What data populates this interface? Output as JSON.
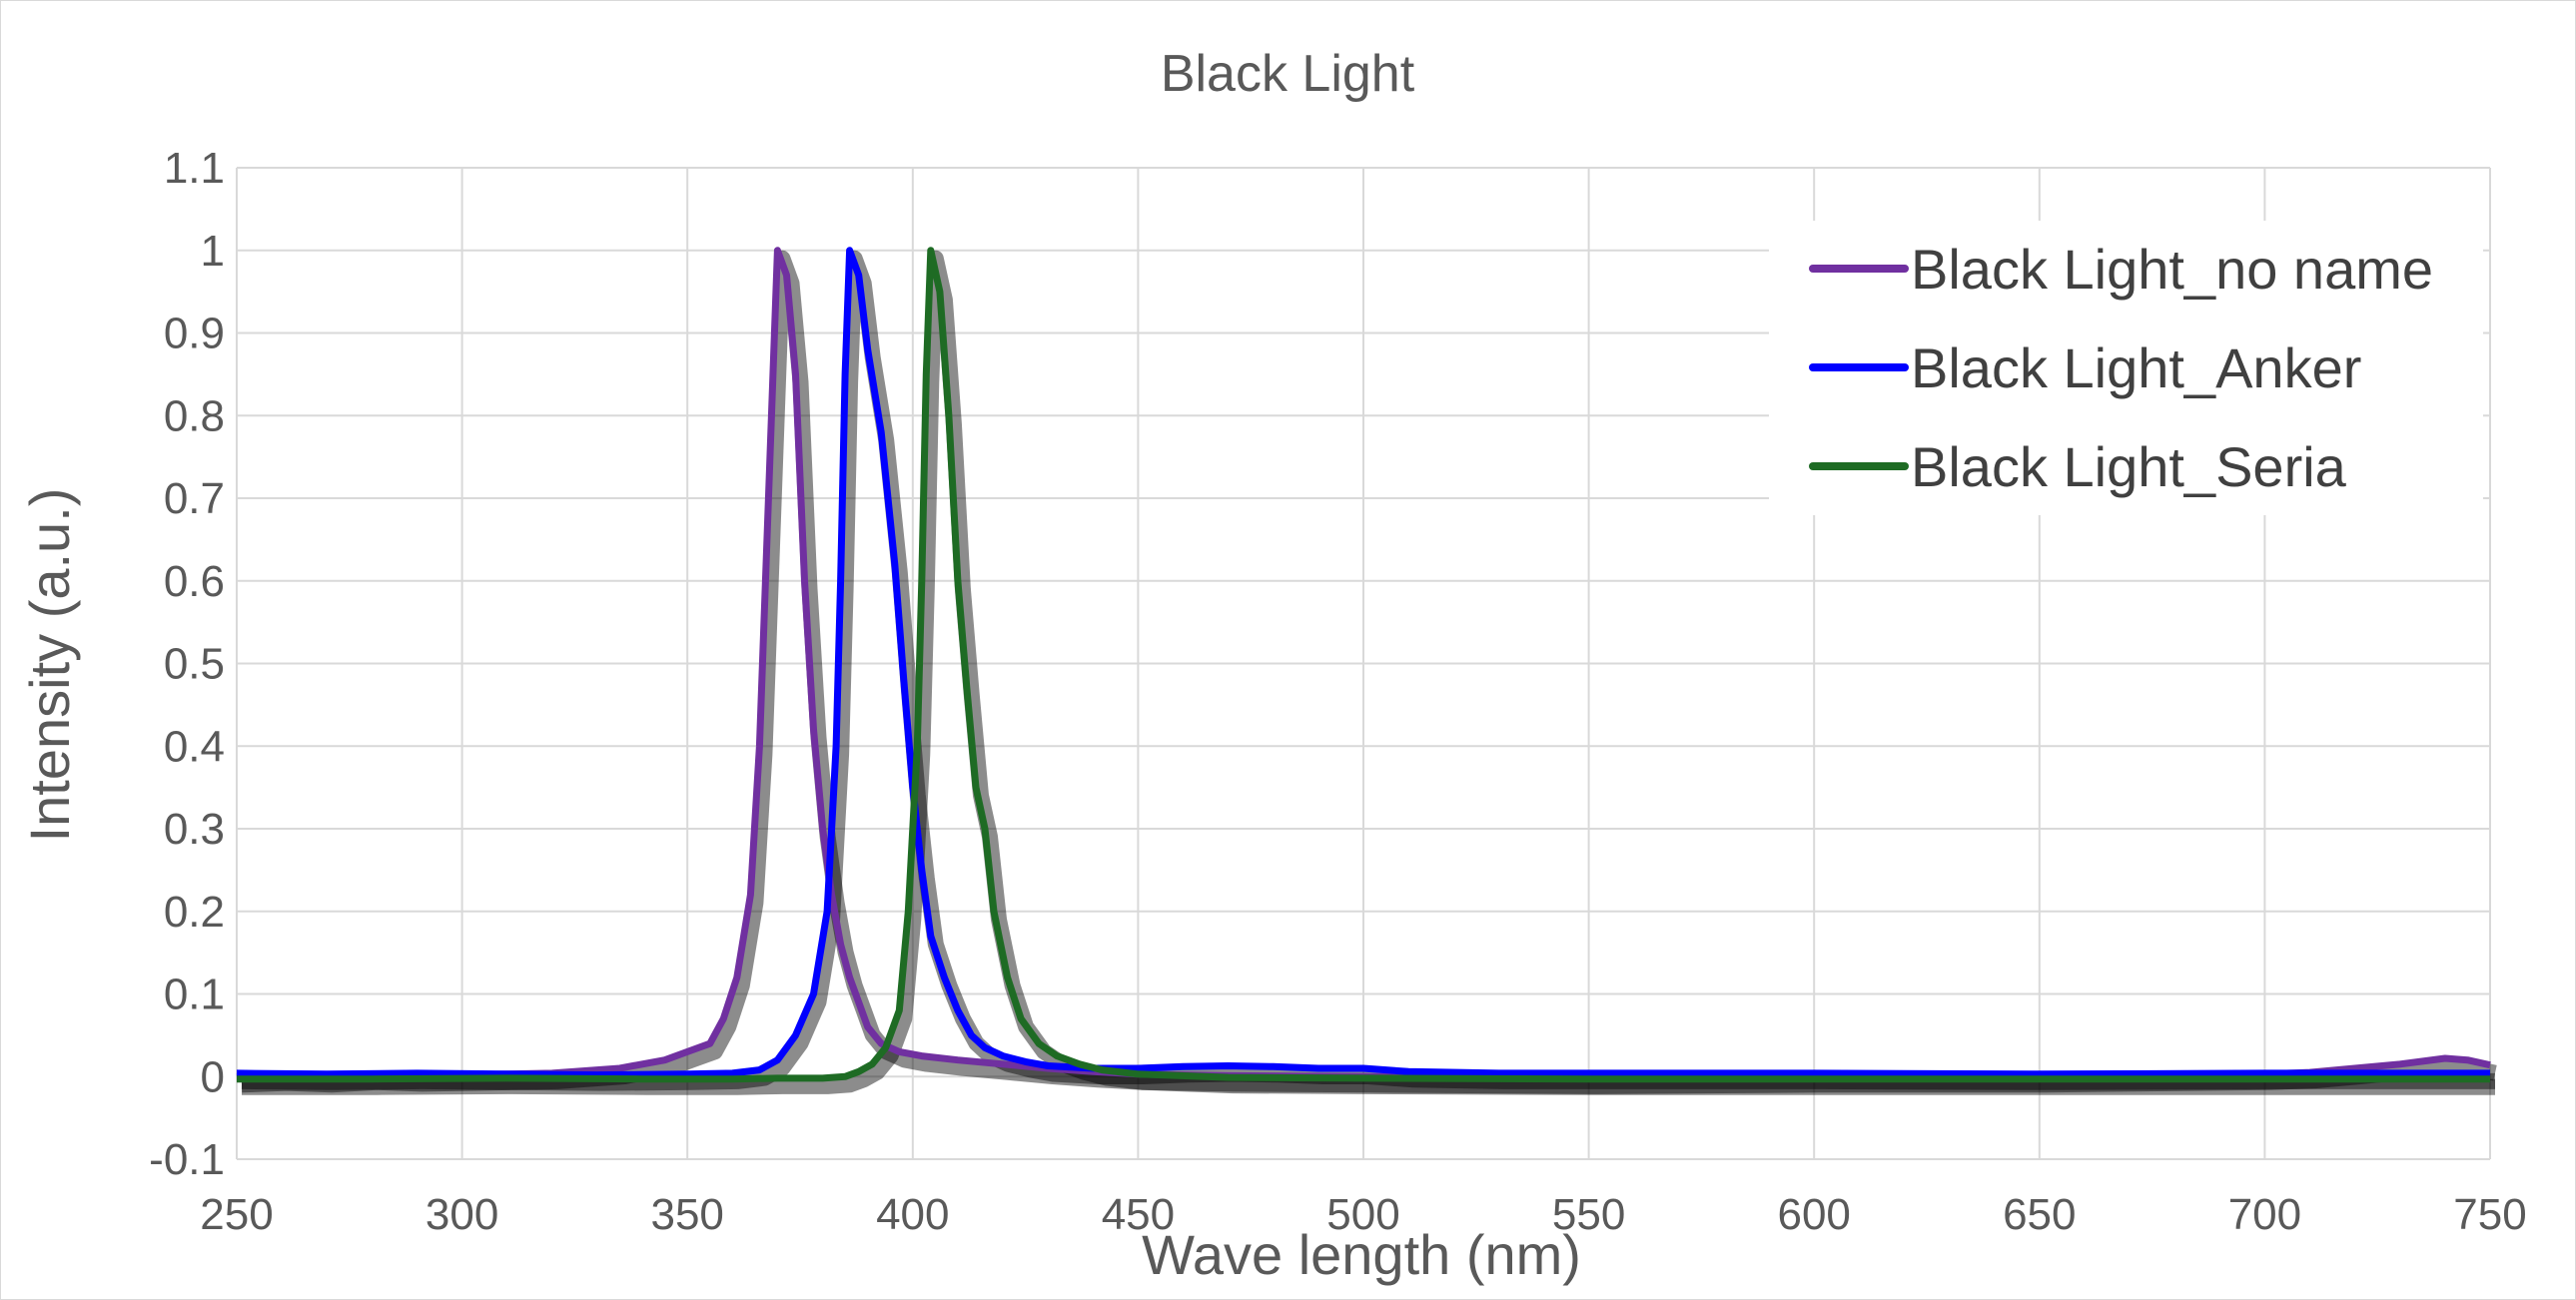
{
  "chart_data": {
    "type": "line",
    "title": "Black Light",
    "xlabel": "Wave length (nm)",
    "ylabel": "Intensity (a.u.)",
    "xlim": [
      250,
      750
    ],
    "ylim": [
      -0.1,
      1.1
    ],
    "x_ticks": [
      "250",
      "300",
      "350",
      "400",
      "450",
      "500",
      "550",
      "600",
      "650",
      "700",
      "750"
    ],
    "y_ticks": [
      "-0.1",
      "0",
      "0.1",
      "0.2",
      "0.3",
      "0.4",
      "0.5",
      "0.6",
      "0.7",
      "0.8",
      "0.9",
      "1",
      "1.1"
    ],
    "grid": true,
    "legend_position": "top-right",
    "series": [
      {
        "name": "Black Light_no name",
        "color": "#7030a0",
        "points": [
          [
            250,
            0.0
          ],
          [
            260,
            0.002
          ],
          [
            270,
            0.0
          ],
          [
            280,
            0.003
          ],
          [
            290,
            0.001
          ],
          [
            300,
            0.002
          ],
          [
            310,
            0.003
          ],
          [
            320,
            0.004
          ],
          [
            330,
            0.008
          ],
          [
            335,
            0.01
          ],
          [
            340,
            0.015
          ],
          [
            345,
            0.02
          ],
          [
            350,
            0.03
          ],
          [
            355,
            0.04
          ],
          [
            358,
            0.07
          ],
          [
            361,
            0.12
          ],
          [
            364,
            0.22
          ],
          [
            366,
            0.4
          ],
          [
            368,
            0.7
          ],
          [
            370,
            1.0
          ],
          [
            372,
            0.97
          ],
          [
            374,
            0.85
          ],
          [
            376,
            0.6
          ],
          [
            378,
            0.42
          ],
          [
            380,
            0.3
          ],
          [
            382,
            0.22
          ],
          [
            384,
            0.16
          ],
          [
            386,
            0.12
          ],
          [
            388,
            0.09
          ],
          [
            390,
            0.06
          ],
          [
            393,
            0.04
          ],
          [
            397,
            0.03
          ],
          [
            402,
            0.025
          ],
          [
            410,
            0.02
          ],
          [
            420,
            0.015
          ],
          [
            430,
            0.01
          ],
          [
            440,
            0.006
          ],
          [
            450,
            0.003
          ],
          [
            470,
            0.001
          ],
          [
            500,
            0.0
          ],
          [
            550,
            -0.002
          ],
          [
            600,
            0.0
          ],
          [
            650,
            0.0
          ],
          [
            700,
            0.003
          ],
          [
            710,
            0.005
          ],
          [
            720,
            0.01
          ],
          [
            730,
            0.015
          ],
          [
            740,
            0.022
          ],
          [
            745,
            0.02
          ],
          [
            750,
            0.014
          ]
        ]
      },
      {
        "name": "Black Light_Anker",
        "color": "#0000ff",
        "points": [
          [
            250,
            0.004
          ],
          [
            270,
            0.003
          ],
          [
            290,
            0.004
          ],
          [
            310,
            0.003
          ],
          [
            330,
            0.002
          ],
          [
            350,
            0.003
          ],
          [
            360,
            0.004
          ],
          [
            366,
            0.008
          ],
          [
            370,
            0.02
          ],
          [
            374,
            0.05
          ],
          [
            378,
            0.1
          ],
          [
            381,
            0.2
          ],
          [
            383,
            0.4
          ],
          [
            384,
            0.6
          ],
          [
            385,
            0.85
          ],
          [
            386,
            1.0
          ],
          [
            388,
            0.97
          ],
          [
            390,
            0.88
          ],
          [
            393,
            0.78
          ],
          [
            396,
            0.62
          ],
          [
            398,
            0.48
          ],
          [
            400,
            0.35
          ],
          [
            402,
            0.25
          ],
          [
            404,
            0.17
          ],
          [
            407,
            0.12
          ],
          [
            410,
            0.08
          ],
          [
            413,
            0.05
          ],
          [
            416,
            0.035
          ],
          [
            420,
            0.025
          ],
          [
            425,
            0.018
          ],
          [
            430,
            0.013
          ],
          [
            440,
            0.01
          ],
          [
            450,
            0.01
          ],
          [
            460,
            0.012
          ],
          [
            470,
            0.013
          ],
          [
            480,
            0.012
          ],
          [
            490,
            0.01
          ],
          [
            500,
            0.01
          ],
          [
            510,
            0.006
          ],
          [
            530,
            0.004
          ],
          [
            560,
            0.004
          ],
          [
            600,
            0.004
          ],
          [
            650,
            0.003
          ],
          [
            700,
            0.004
          ],
          [
            750,
            0.004
          ]
        ]
      },
      {
        "name": "Black Light_Seria",
        "color": "#1e6b24",
        "points": [
          [
            250,
            -0.003
          ],
          [
            280,
            -0.003
          ],
          [
            310,
            -0.002
          ],
          [
            340,
            -0.003
          ],
          [
            360,
            -0.003
          ],
          [
            370,
            -0.002
          ],
          [
            380,
            -0.002
          ],
          [
            385,
            0.0
          ],
          [
            388,
            0.006
          ],
          [
            391,
            0.015
          ],
          [
            394,
            0.035
          ],
          [
            397,
            0.08
          ],
          [
            399,
            0.2
          ],
          [
            401,
            0.4
          ],
          [
            402,
            0.6
          ],
          [
            403,
            0.85
          ],
          [
            404,
            1.0
          ],
          [
            406,
            0.95
          ],
          [
            408,
            0.8
          ],
          [
            410,
            0.6
          ],
          [
            412,
            0.47
          ],
          [
            414,
            0.35
          ],
          [
            416,
            0.3
          ],
          [
            418,
            0.2
          ],
          [
            421,
            0.12
          ],
          [
            424,
            0.07
          ],
          [
            428,
            0.04
          ],
          [
            432,
            0.025
          ],
          [
            437,
            0.015
          ],
          [
            442,
            0.008
          ],
          [
            450,
            0.003
          ],
          [
            470,
            -0.001
          ],
          [
            500,
            -0.002
          ],
          [
            550,
            -0.003
          ],
          [
            600,
            -0.003
          ],
          [
            650,
            -0.003
          ],
          [
            700,
            -0.003
          ],
          [
            750,
            -0.003
          ]
        ]
      }
    ]
  }
}
